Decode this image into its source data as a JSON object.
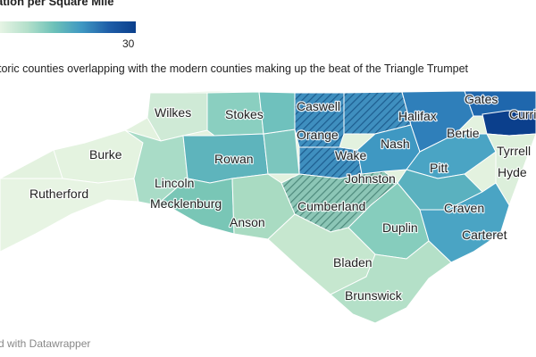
{
  "legend": {
    "title": "ation per Square Mile",
    "max_label": "30",
    "color_low": "#e6f4e4",
    "color_high": "#0b3f8c"
  },
  "subtitle": "toric counties overlapping with the modern counties making up the beat of the Triangle Trumpet",
  "credit": "d with Datawrapper",
  "map": {
    "region": "North Carolina",
    "county_labels": {
      "wilkes": "Wilkes",
      "stokes": "Stokes",
      "caswell": "Caswell",
      "gates": "Gates",
      "halifax": "Halifax",
      "currituck": "Curri",
      "burke": "Burke",
      "orange": "Orange",
      "bertie": "Bertie",
      "nash": "Nash",
      "rowan": "Rowan",
      "wake": "Wake",
      "tyrrell": "Tyrrell",
      "hyde": "Hyde",
      "rutherford": "Rutherford",
      "lincoln": "Lincoln",
      "johnston": "Johnston",
      "pitt": "Pitt",
      "mecklenburg": "Mecklenburg",
      "cumberland": "Cumberland",
      "craven": "Craven",
      "anson": "Anson",
      "duplin": "Duplin",
      "carteret": "Carteret",
      "bladen": "Bladen",
      "brunswick": "Brunswick"
    }
  }
}
